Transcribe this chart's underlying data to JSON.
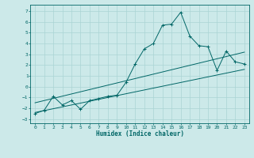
{
  "title": "",
  "xlabel": "Humidex (Indice chaleur)",
  "background_color": "#cce9e9",
  "grid_color": "#aad4d4",
  "line_color": "#006666",
  "xlim": [
    -0.5,
    23.5
  ],
  "ylim": [
    -3.4,
    7.6
  ],
  "xticks": [
    0,
    1,
    2,
    3,
    4,
    5,
    6,
    7,
    8,
    9,
    10,
    11,
    12,
    13,
    14,
    15,
    16,
    17,
    18,
    19,
    20,
    21,
    22,
    23
  ],
  "yticks": [
    -3,
    -2,
    -1,
    0,
    1,
    2,
    3,
    4,
    5,
    6,
    7
  ],
  "main_line_x": [
    0,
    1,
    2,
    3,
    4,
    5,
    6,
    7,
    8,
    9,
    10,
    11,
    12,
    13,
    14,
    15,
    16,
    17,
    18,
    19,
    20,
    21,
    22,
    23
  ],
  "main_line_y": [
    -2.5,
    -2.2,
    -0.9,
    -1.7,
    -1.3,
    -2.1,
    -1.3,
    -1.1,
    -0.9,
    -0.8,
    0.4,
    2.1,
    3.5,
    4.0,
    5.7,
    5.8,
    6.9,
    4.7,
    3.8,
    3.7,
    1.5,
    3.3,
    2.3,
    2.1
  ],
  "trend1_x": [
    0,
    23
  ],
  "trend1_y": [
    -2.4,
    1.6
  ],
  "trend2_x": [
    0,
    23
  ],
  "trend2_y": [
    -1.5,
    3.2
  ],
  "figsize": [
    3.2,
    2.0
  ],
  "dpi": 100
}
